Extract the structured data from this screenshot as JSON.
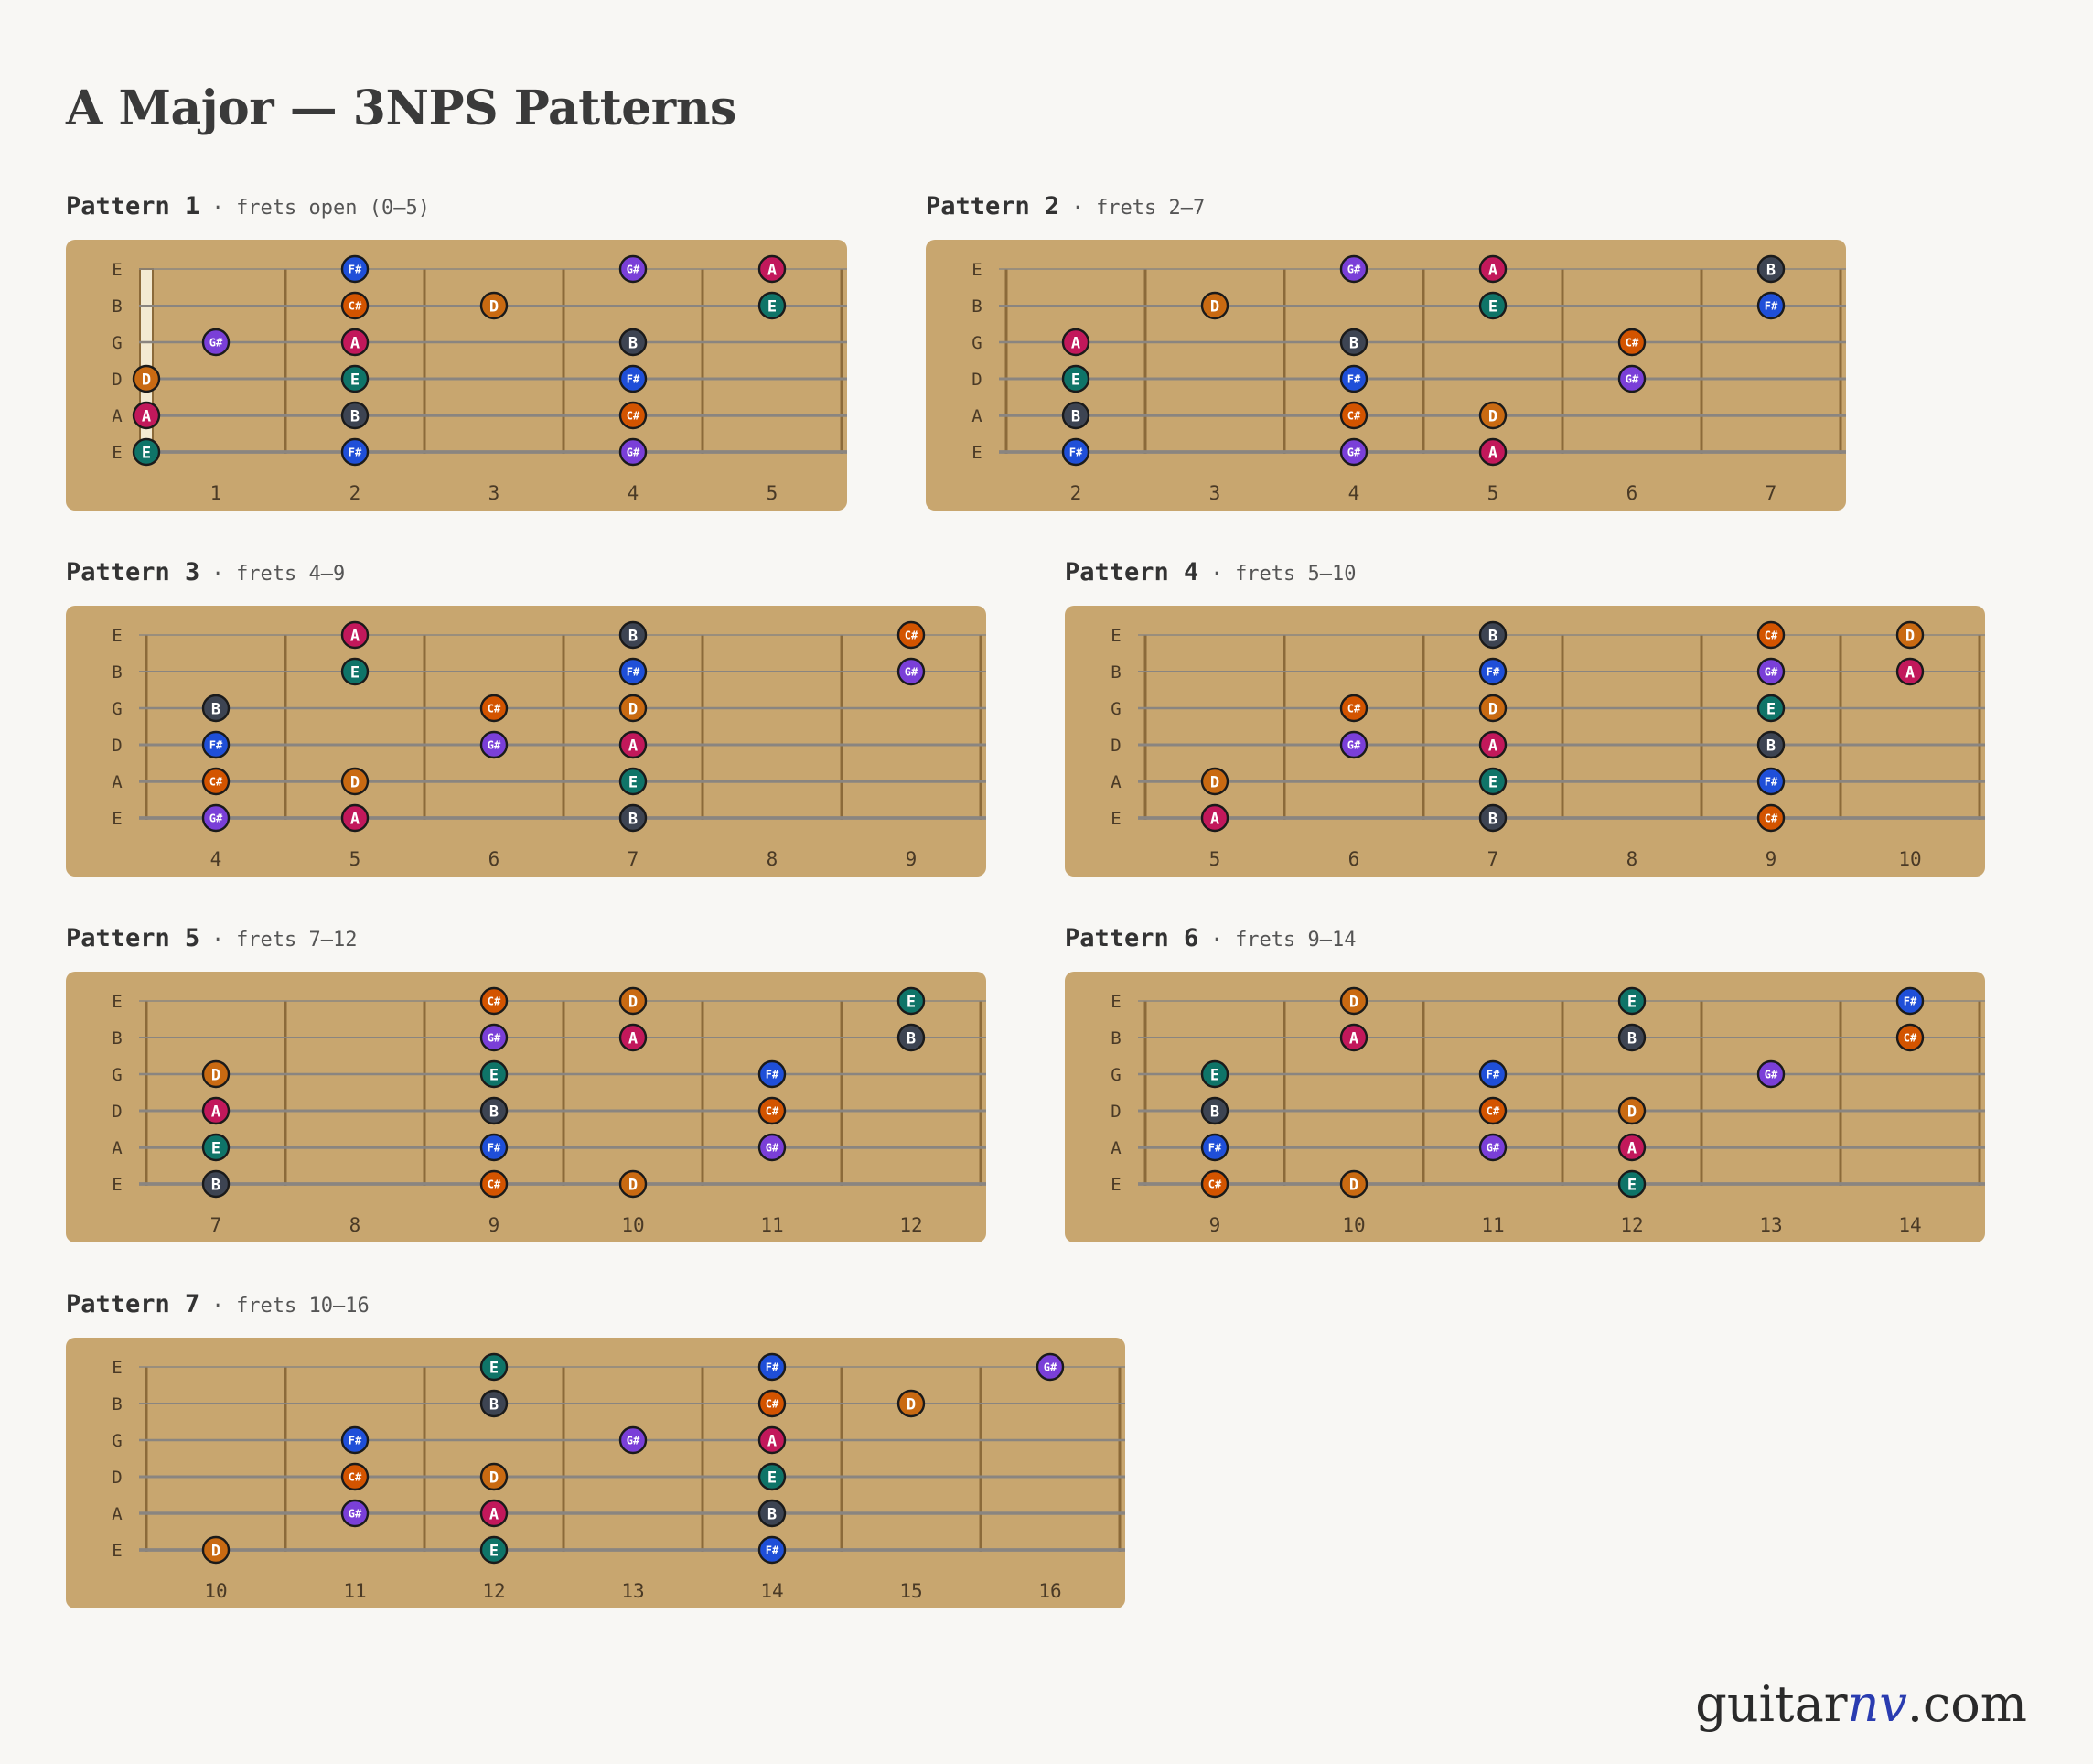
{
  "title": "A Major — 3NPS Patterns",
  "brand": {
    "prefix": "guitar",
    "mid": "nv",
    "suffix": ".com"
  },
  "strings": [
    "E",
    "B",
    "G",
    "D",
    "A",
    "E"
  ],
  "colors": {
    "fretboard": "#c8a66f",
    "A": "#c2185b",
    "B": "#3d4452",
    "C#": "#d35400",
    "D": "#c96a12",
    "E": "#0f7468",
    "F#": "#1f4fd8",
    "G#": "#7a3fd8"
  },
  "patterns": [
    {
      "name": "Pattern 1",
      "range": "frets open (0–5)",
      "open": true,
      "frets": [
        1,
        2,
        3,
        4,
        5
      ],
      "notes": [
        [
          [
            2,
            "F#"
          ],
          [
            4,
            "G#"
          ],
          [
            5,
            "A"
          ]
        ],
        [
          [
            2,
            "C#"
          ],
          [
            3,
            "D"
          ],
          [
            5,
            "E"
          ]
        ],
        [
          [
            1,
            "G#"
          ],
          [
            2,
            "A"
          ],
          [
            4,
            "B"
          ]
        ],
        [
          [
            0,
            "D"
          ],
          [
            2,
            "E"
          ],
          [
            4,
            "F#"
          ]
        ],
        [
          [
            0,
            "A"
          ],
          [
            2,
            "B"
          ],
          [
            4,
            "C#"
          ]
        ],
        [
          [
            0,
            "E"
          ],
          [
            2,
            "F#"
          ],
          [
            4,
            "G#"
          ]
        ]
      ]
    },
    {
      "name": "Pattern 2",
      "range": "frets 2–7",
      "frets": [
        2,
        3,
        4,
        5,
        6,
        7
      ],
      "notes": [
        [
          [
            4,
            "G#"
          ],
          [
            5,
            "A"
          ],
          [
            7,
            "B"
          ]
        ],
        [
          [
            3,
            "D"
          ],
          [
            5,
            "E"
          ],
          [
            7,
            "F#"
          ]
        ],
        [
          [
            2,
            "A"
          ],
          [
            4,
            "B"
          ],
          [
            6,
            "C#"
          ]
        ],
        [
          [
            2,
            "E"
          ],
          [
            4,
            "F#"
          ],
          [
            6,
            "G#"
          ]
        ],
        [
          [
            2,
            "B"
          ],
          [
            4,
            "C#"
          ],
          [
            5,
            "D"
          ]
        ],
        [
          [
            2,
            "F#"
          ],
          [
            4,
            "G#"
          ],
          [
            5,
            "A"
          ]
        ]
      ]
    },
    {
      "name": "Pattern 3",
      "range": "frets 4–9",
      "frets": [
        4,
        5,
        6,
        7,
        8,
        9
      ],
      "notes": [
        [
          [
            5,
            "A"
          ],
          [
            7,
            "B"
          ],
          [
            9,
            "C#"
          ]
        ],
        [
          [
            5,
            "E"
          ],
          [
            7,
            "F#"
          ],
          [
            9,
            "G#"
          ]
        ],
        [
          [
            4,
            "B"
          ],
          [
            6,
            "C#"
          ],
          [
            7,
            "D"
          ]
        ],
        [
          [
            4,
            "F#"
          ],
          [
            6,
            "G#"
          ],
          [
            7,
            "A"
          ]
        ],
        [
          [
            4,
            "C#"
          ],
          [
            5,
            "D"
          ],
          [
            7,
            "E"
          ]
        ],
        [
          [
            4,
            "G#"
          ],
          [
            5,
            "A"
          ],
          [
            7,
            "B"
          ]
        ]
      ]
    },
    {
      "name": "Pattern 4",
      "range": "frets 5–10",
      "frets": [
        5,
        6,
        7,
        8,
        9,
        10
      ],
      "notes": [
        [
          [
            7,
            "B"
          ],
          [
            9,
            "C#"
          ],
          [
            10,
            "D"
          ]
        ],
        [
          [
            7,
            "F#"
          ],
          [
            9,
            "G#"
          ],
          [
            10,
            "A"
          ]
        ],
        [
          [
            6,
            "C#"
          ],
          [
            7,
            "D"
          ],
          [
            9,
            "E"
          ]
        ],
        [
          [
            6,
            "G#"
          ],
          [
            7,
            "A"
          ],
          [
            9,
            "B"
          ]
        ],
        [
          [
            5,
            "D"
          ],
          [
            7,
            "E"
          ],
          [
            9,
            "F#"
          ]
        ],
        [
          [
            5,
            "A"
          ],
          [
            7,
            "B"
          ],
          [
            9,
            "C#"
          ]
        ]
      ]
    },
    {
      "name": "Pattern 5",
      "range": "frets 7–12",
      "frets": [
        7,
        8,
        9,
        10,
        11,
        12
      ],
      "notes": [
        [
          [
            9,
            "C#"
          ],
          [
            10,
            "D"
          ],
          [
            12,
            "E"
          ]
        ],
        [
          [
            9,
            "G#"
          ],
          [
            10,
            "A"
          ],
          [
            12,
            "B"
          ]
        ],
        [
          [
            7,
            "D"
          ],
          [
            9,
            "E"
          ],
          [
            11,
            "F#"
          ]
        ],
        [
          [
            7,
            "A"
          ],
          [
            9,
            "B"
          ],
          [
            11,
            "C#"
          ]
        ],
        [
          [
            7,
            "E"
          ],
          [
            9,
            "F#"
          ],
          [
            11,
            "G#"
          ]
        ],
        [
          [
            7,
            "B"
          ],
          [
            9,
            "C#"
          ],
          [
            10,
            "D"
          ]
        ]
      ]
    },
    {
      "name": "Pattern 6",
      "range": "frets 9–14",
      "frets": [
        9,
        10,
        11,
        12,
        13,
        14
      ],
      "notes": [
        [
          [
            10,
            "D"
          ],
          [
            12,
            "E"
          ],
          [
            14,
            "F#"
          ]
        ],
        [
          [
            10,
            "A"
          ],
          [
            12,
            "B"
          ],
          [
            14,
            "C#"
          ]
        ],
        [
          [
            9,
            "E"
          ],
          [
            11,
            "F#"
          ],
          [
            13,
            "G#"
          ]
        ],
        [
          [
            9,
            "B"
          ],
          [
            11,
            "C#"
          ],
          [
            12,
            "D"
          ]
        ],
        [
          [
            9,
            "F#"
          ],
          [
            11,
            "G#"
          ],
          [
            12,
            "A"
          ]
        ],
        [
          [
            9,
            "C#"
          ],
          [
            10,
            "D"
          ],
          [
            12,
            "E"
          ]
        ]
      ]
    },
    {
      "name": "Pattern 7",
      "range": "frets 10–16",
      "frets": [
        10,
        11,
        12,
        13,
        14,
        15,
        16
      ],
      "notes": [
        [
          [
            12,
            "E"
          ],
          [
            14,
            "F#"
          ],
          [
            16,
            "G#"
          ]
        ],
        [
          [
            12,
            "B"
          ],
          [
            14,
            "C#"
          ],
          [
            15,
            "D"
          ]
        ],
        [
          [
            11,
            "F#"
          ],
          [
            13,
            "G#"
          ],
          [
            14,
            "A"
          ]
        ],
        [
          [
            11,
            "C#"
          ],
          [
            12,
            "D"
          ],
          [
            14,
            "E"
          ]
        ],
        [
          [
            11,
            "G#"
          ],
          [
            12,
            "A"
          ],
          [
            14,
            "B"
          ]
        ],
        [
          [
            10,
            "D"
          ],
          [
            12,
            "E"
          ],
          [
            14,
            "F#"
          ]
        ]
      ]
    }
  ]
}
